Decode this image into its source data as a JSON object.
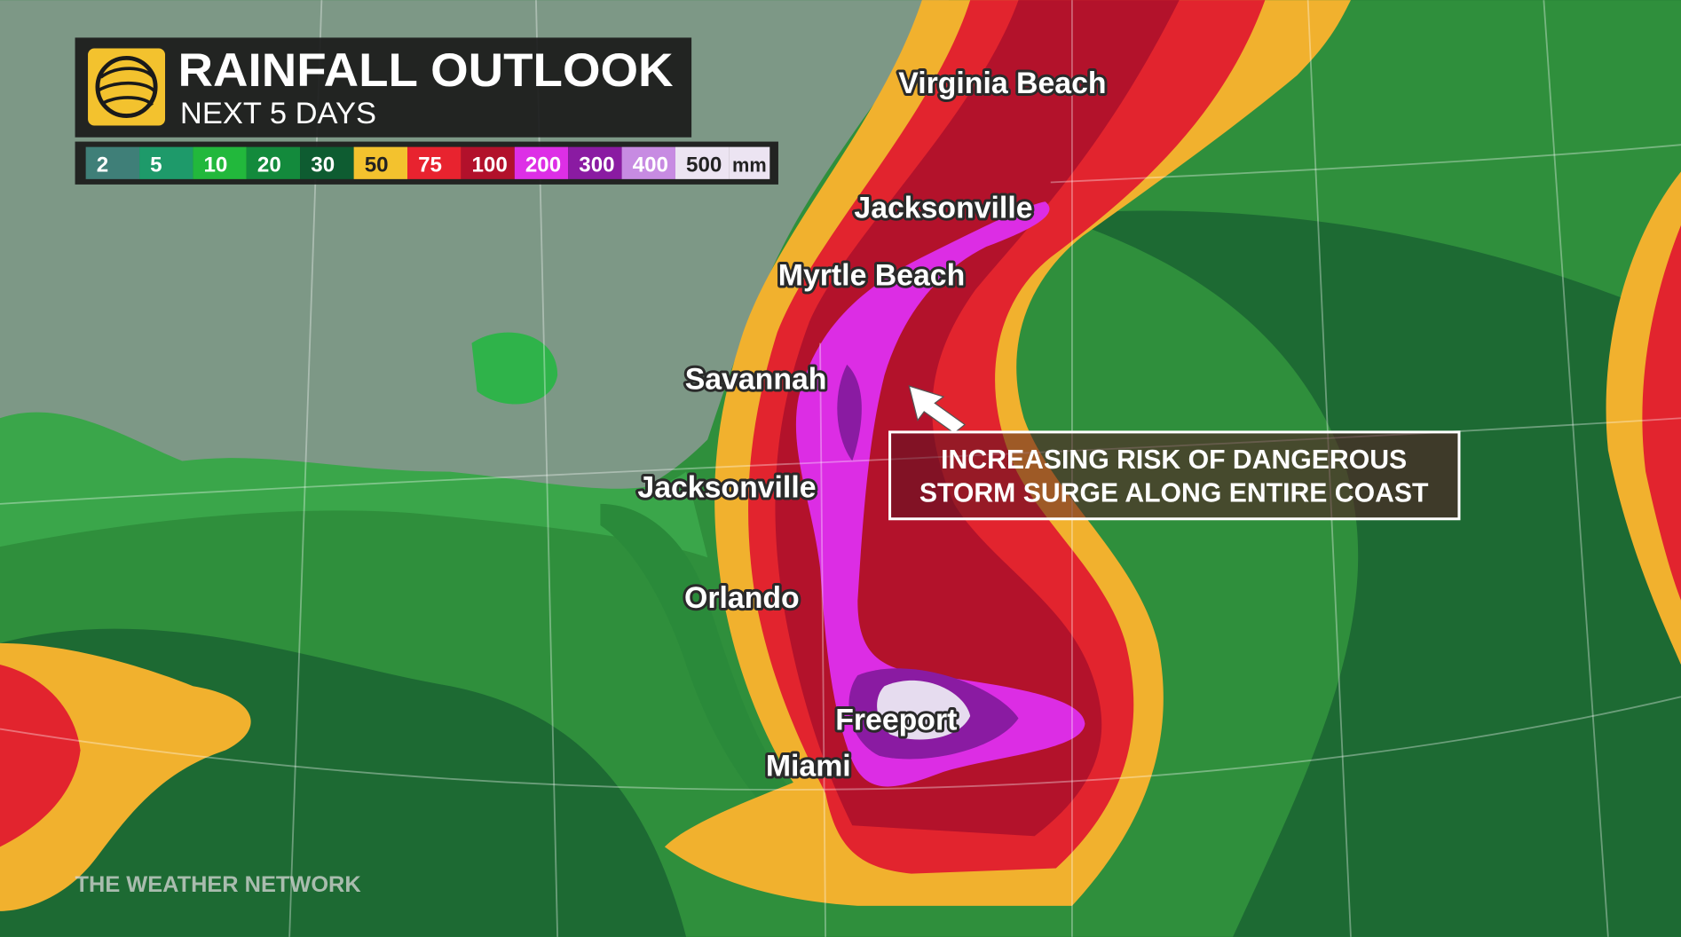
{
  "header": {
    "title": "RAINFALL OUTLOOK",
    "subtitle": "NEXT 5 DAYS"
  },
  "legend": {
    "items": [
      {
        "value": 2,
        "color": "#3f7f78"
      },
      {
        "value": 5,
        "color": "#1e9a6a"
      },
      {
        "value": 10,
        "color": "#22b83c"
      },
      {
        "value": 20,
        "color": "#138a3c"
      },
      {
        "value": 30,
        "color": "#0e5c31"
      },
      {
        "value": 50,
        "color": "#f3c22e"
      },
      {
        "value": 75,
        "color": "#e8232f"
      },
      {
        "value": 100,
        "color": "#b2112b"
      },
      {
        "value": 200,
        "color": "#dd2fe6"
      },
      {
        "value": 300,
        "color": "#8a1ba2"
      },
      {
        "value": 400,
        "color": "#c78be2"
      },
      {
        "value": 500,
        "color": "#ece4f2"
      }
    ],
    "unit": "mm"
  },
  "cities": [
    "Virginia Beach",
    "Jacksonville",
    "Myrtle Beach",
    "Savannah",
    "Jacksonville",
    "Orlando",
    "Freeport",
    "Miami"
  ],
  "annotation": {
    "lines": [
      "INCREASING RISK OF DANGEROUS",
      "STORM SURGE ALONG ENTIRE COAST"
    ]
  },
  "watermark": "THE WEATHER NETWORK"
}
